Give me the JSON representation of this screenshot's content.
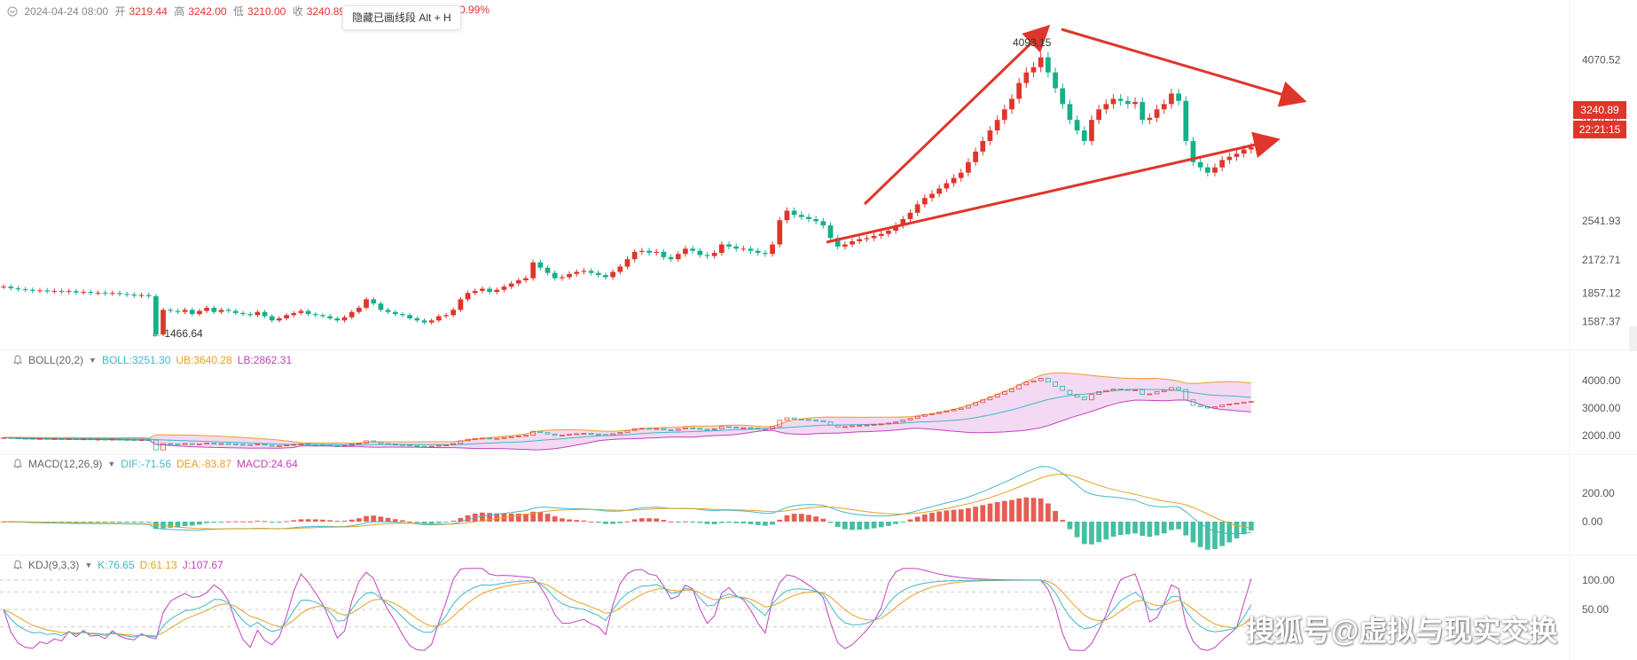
{
  "header": {
    "date": "2024-04-24 08:00",
    "open_label": "开",
    "open": "3219.44",
    "high_label": "高",
    "high": "3242.00",
    "low_label": "低",
    "low": "3210.00",
    "close_label": "收",
    "close": "3240.89",
    "change_pct": "0.99%"
  },
  "tooltip": {
    "text": "隐藏已画线段 Alt + H"
  },
  "price_tags": {
    "last_price": "3240.89",
    "countdown": "22:21:15"
  },
  "annotations": {
    "high_label": "4093.15",
    "low_label": "← 1466.64"
  },
  "indicators": {
    "boll": {
      "name": "BOLL(20,2)",
      "boll": "BOLL:3251.30",
      "ub": "UB:3640.28",
      "lb": "LB:2862.31"
    },
    "macd": {
      "name": "MACD(12,26,9)",
      "dif": "DIF:-71.56",
      "dea": "DEA:-83.87",
      "macd": "MACD:24.64"
    },
    "kdj": {
      "name": "KDJ(9,3,3)",
      "k": "K:76.65",
      "d": "D:61.13",
      "j": "J:107.67"
    }
  },
  "watermark": "搜狐号@虚拟与现实交换",
  "colors": {
    "up": "#e0352b",
    "down": "#14b08a",
    "boll_mid": "#3fb8c8",
    "boll_ub": "#e8a020",
    "boll_lb": "#c042c0",
    "trend": "#e0352b"
  },
  "chart_data": {
    "type": "candlestick",
    "main": {
      "y_ticks": [
        4070.52,
        3479.26,
        2541.93,
        2172.71,
        1857.12,
        1587.37
      ],
      "series_close": [
        1920,
        1905,
        1895,
        1890,
        1880,
        1885,
        1875,
        1880,
        1870,
        1878,
        1865,
        1870,
        1860,
        1862,
        1855,
        1860,
        1850,
        1845,
        1835,
        1840,
        1830,
        1466.64,
        1700,
        1690,
        1680,
        1700,
        1660,
        1690,
        1720,
        1680,
        1700,
        1690,
        1670,
        1660,
        1650,
        1680,
        1640,
        1600,
        1620,
        1650,
        1670,
        1690,
        1660,
        1650,
        1640,
        1620,
        1600,
        1630,
        1680,
        1720,
        1800,
        1760,
        1700,
        1680,
        1660,
        1650,
        1620,
        1600,
        1580,
        1600,
        1640,
        1650,
        1700,
        1800,
        1860,
        1880,
        1900,
        1870,
        1890,
        1920,
        1950,
        1980,
        2000,
        2150,
        2100,
        2050,
        2000,
        2010,
        2040,
        2060,
        2070,
        2050,
        2030,
        2010,
        2060,
        2110,
        2180,
        2250,
        2260,
        2240,
        2250,
        2200,
        2180,
        2230,
        2280,
        2260,
        2220,
        2210,
        2240,
        2320,
        2300,
        2280,
        2280,
        2260,
        2240,
        2230,
        2320,
        2550,
        2640,
        2600,
        2580,
        2560,
        2540,
        2500,
        2380,
        2300,
        2320,
        2350,
        2370,
        2380,
        2400,
        2420,
        2450,
        2500,
        2560,
        2620,
        2700,
        2760,
        2800,
        2850,
        2900,
        2950,
        3000,
        3100,
        3200,
        3300,
        3400,
        3500,
        3600,
        3700,
        3850,
        3950,
        4000,
        4093.15,
        3950,
        3800,
        3650,
        3500,
        3400,
        3300,
        3500,
        3600,
        3650,
        3700,
        3680,
        3650,
        3670,
        3500,
        3520,
        3600,
        3650,
        3750,
        3680,
        3300,
        3100,
        3050,
        3000,
        3050,
        3120,
        3150,
        3180,
        3220,
        3240.89
      ],
      "low_label": 1466.64,
      "high_label": 4093.15
    },
    "boll": {
      "ticks": [
        4000,
        3000,
        2000
      ]
    },
    "macd": {
      "ticks": [
        200,
        0
      ]
    },
    "kdj": {
      "ticks": [
        100,
        50
      ]
    }
  }
}
